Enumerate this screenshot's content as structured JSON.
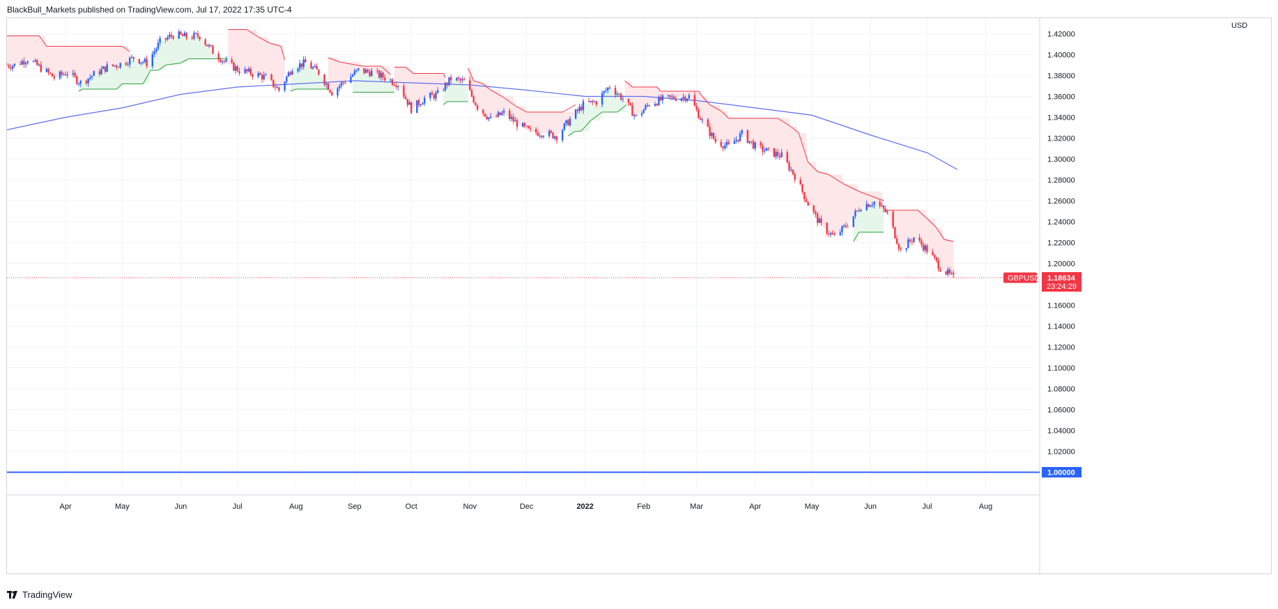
{
  "attribution": "BlackBull_Markets published on TradingView.com, Jul 17, 2022 17:35 UTC-4",
  "footer": {
    "brand": "TradingView"
  },
  "colors": {
    "up": "#2962ff",
    "down": "#f23645",
    "ma": "#5b6cf0",
    "supertrend_down": "#f23645",
    "supertrend_up": "#2e9e3e",
    "fill_down": "#fde3e5",
    "fill_up": "#e3f4e6",
    "level": "#2962ff",
    "grid": "#f0f3fa"
  },
  "chart_data": {
    "type": "candlestick",
    "symbol": "GBPUSD",
    "currency": "USD",
    "last_price": "1.18634",
    "countdown": "23:24:29",
    "level_line": {
      "value": 1.0,
      "label": "1.00000"
    },
    "ylim": [
      0.985,
      1.435
    ],
    "y_ticks": [
      "1.42000",
      "1.40000",
      "1.38000",
      "1.36000",
      "1.34000",
      "1.32000",
      "1.30000",
      "1.28000",
      "1.26000",
      "1.24000",
      "1.22000",
      "1.20000",
      "1.16000",
      "1.14000",
      "1.12000",
      "1.10000",
      "1.08000",
      "1.06000",
      "1.04000",
      "1.02000"
    ],
    "x_ticks": [
      {
        "label": "Apr",
        "date": "2021-04-01"
      },
      {
        "label": "May",
        "date": "2021-05-01"
      },
      {
        "label": "Jun",
        "date": "2021-06-01"
      },
      {
        "label": "Jul",
        "date": "2021-07-01"
      },
      {
        "label": "Aug",
        "date": "2021-08-01"
      },
      {
        "label": "Sep",
        "date": "2021-09-01"
      },
      {
        "label": "Oct",
        "date": "2021-10-01"
      },
      {
        "label": "Nov",
        "date": "2021-11-01"
      },
      {
        "label": "Dec",
        "date": "2021-12-01"
      },
      {
        "label": "2022",
        "date": "2022-01-01",
        "bold": true
      },
      {
        "label": "Feb",
        "date": "2022-02-01"
      },
      {
        "label": "Mar",
        "date": "2022-03-01"
      },
      {
        "label": "Apr",
        "date": "2022-04-01"
      },
      {
        "label": "May",
        "date": "2022-05-01"
      },
      {
        "label": "Jun",
        "date": "2022-06-01"
      },
      {
        "label": "Jul",
        "date": "2022-07-01"
      },
      {
        "label": "Aug",
        "date": "2022-08-01"
      }
    ],
    "price_path": [
      [
        "2021-03-05",
        1.39
      ],
      [
        "2021-03-12",
        1.396
      ],
      [
        "2021-03-19",
        1.387
      ],
      [
        "2021-03-26",
        1.378
      ],
      [
        "2021-04-02",
        1.383
      ],
      [
        "2021-04-09",
        1.373
      ],
      [
        "2021-04-16",
        1.381
      ],
      [
        "2021-04-23",
        1.388
      ],
      [
        "2021-04-30",
        1.391
      ],
      [
        "2021-05-07",
        1.397
      ],
      [
        "2021-05-14",
        1.392
      ],
      [
        "2021-05-21",
        1.412
      ],
      [
        "2021-05-28",
        1.419
      ],
      [
        "2021-06-04",
        1.417
      ],
      [
        "2021-06-11",
        1.418
      ],
      [
        "2021-06-18",
        1.403
      ],
      [
        "2021-06-25",
        1.392
      ],
      [
        "2021-07-02",
        1.385
      ],
      [
        "2021-07-09",
        1.382
      ],
      [
        "2021-07-16",
        1.378
      ],
      [
        "2021-07-23",
        1.366
      ],
      [
        "2021-07-30",
        1.388
      ],
      [
        "2021-08-06",
        1.392
      ],
      [
        "2021-08-13",
        1.383
      ],
      [
        "2021-08-20",
        1.364
      ],
      [
        "2021-08-27",
        1.375
      ],
      [
        "2021-09-03",
        1.385
      ],
      [
        "2021-09-10",
        1.383
      ],
      [
        "2021-09-17",
        1.378
      ],
      [
        "2021-09-24",
        1.372
      ],
      [
        "2021-10-01",
        1.348
      ],
      [
        "2021-10-08",
        1.358
      ],
      [
        "2021-10-15",
        1.362
      ],
      [
        "2021-10-22",
        1.377
      ],
      [
        "2021-10-29",
        1.374
      ],
      [
        "2021-11-05",
        1.35
      ],
      [
        "2021-11-12",
        1.338
      ],
      [
        "2021-11-19",
        1.344
      ],
      [
        "2021-11-26",
        1.334
      ],
      [
        "2021-12-03",
        1.326
      ],
      [
        "2021-12-10",
        1.325
      ],
      [
        "2021-12-17",
        1.322
      ],
      [
        "2021-12-24",
        1.338
      ],
      [
        "2021-12-31",
        1.352
      ],
      [
        "2022-01-07",
        1.355
      ],
      [
        "2022-01-14",
        1.37
      ],
      [
        "2022-01-21",
        1.358
      ],
      [
        "2022-01-28",
        1.34
      ],
      [
        "2022-02-04",
        1.353
      ],
      [
        "2022-02-11",
        1.357
      ],
      [
        "2022-02-18",
        1.359
      ],
      [
        "2022-02-25",
        1.36
      ],
      [
        "2022-03-04",
        1.336
      ],
      [
        "2022-03-11",
        1.317
      ],
      [
        "2022-03-18",
        1.312
      ],
      [
        "2022-03-25",
        1.324
      ],
      [
        "2022-04-01",
        1.312
      ],
      [
        "2022-04-08",
        1.307
      ],
      [
        "2022-04-15",
        1.303
      ],
      [
        "2022-04-22",
        1.284
      ],
      [
        "2022-04-29",
        1.257
      ],
      [
        "2022-05-06",
        1.236
      ],
      [
        "2022-05-13",
        1.225
      ],
      [
        "2022-05-20",
        1.238
      ],
      [
        "2022-05-27",
        1.255
      ],
      [
        "2022-06-03",
        1.259
      ],
      [
        "2022-06-10",
        1.248
      ],
      [
        "2022-06-17",
        1.212
      ],
      [
        "2022-06-24",
        1.225
      ],
      [
        "2022-07-01",
        1.213
      ],
      [
        "2022-07-08",
        1.196
      ],
      [
        "2022-07-15",
        1.186
      ]
    ],
    "supertrend": [
      {
        "trend": "down",
        "points": [
          [
            "2021-03-01",
            1.418
          ],
          [
            "2021-03-18",
            1.418
          ],
          [
            "2021-03-22",
            1.408
          ],
          [
            "2021-05-01",
            1.408
          ],
          [
            "2021-05-05",
            1.403
          ]
        ]
      },
      {
        "trend": "up",
        "points": [
          [
            "2021-04-08",
            1.365
          ],
          [
            "2021-04-10",
            1.367
          ],
          [
            "2021-04-28",
            1.367
          ],
          [
            "2021-05-01",
            1.372
          ],
          [
            "2021-05-12",
            1.372
          ],
          [
            "2021-05-16",
            1.385
          ],
          [
            "2021-05-20",
            1.385
          ],
          [
            "2021-05-24",
            1.39
          ],
          [
            "2021-06-01",
            1.392
          ],
          [
            "2021-06-05",
            1.396
          ],
          [
            "2021-06-26",
            1.396
          ]
        ]
      },
      {
        "trend": "down",
        "points": [
          [
            "2021-06-26",
            1.424
          ],
          [
            "2021-07-06",
            1.424
          ],
          [
            "2021-07-12",
            1.417
          ],
          [
            "2021-07-18",
            1.411
          ],
          [
            "2021-07-24",
            1.408
          ],
          [
            "2021-07-26",
            1.395
          ]
        ]
      },
      {
        "trend": "up",
        "points": [
          [
            "2021-07-29",
            1.365
          ],
          [
            "2021-08-01",
            1.367
          ],
          [
            "2021-08-18",
            1.367
          ]
        ]
      },
      {
        "trend": "down",
        "points": [
          [
            "2021-08-18",
            1.397
          ],
          [
            "2021-08-24",
            1.393
          ],
          [
            "2021-09-05",
            1.389
          ],
          [
            "2021-09-15",
            1.389
          ],
          [
            "2021-09-20",
            1.381
          ]
        ]
      },
      {
        "trend": "up",
        "points": [
          [
            "2021-08-31",
            1.364
          ],
          [
            "2021-09-22",
            1.364
          ]
        ]
      },
      {
        "trend": "down",
        "points": [
          [
            "2021-09-22",
            1.388
          ],
          [
            "2021-09-28",
            1.388
          ],
          [
            "2021-10-02",
            1.382
          ],
          [
            "2021-10-18",
            1.382
          ],
          [
            "2021-10-19",
            1.378
          ]
        ]
      },
      {
        "trend": "up",
        "points": [
          [
            "2021-10-18",
            1.352
          ],
          [
            "2021-10-20",
            1.355
          ],
          [
            "2021-10-31",
            1.355
          ]
        ]
      },
      {
        "trend": "down",
        "points": [
          [
            "2021-10-31",
            1.387
          ],
          [
            "2021-11-03",
            1.375
          ],
          [
            "2021-11-08",
            1.372
          ],
          [
            "2021-11-12",
            1.366
          ],
          [
            "2021-11-18",
            1.36
          ],
          [
            "2021-11-25",
            1.351
          ],
          [
            "2021-12-01",
            1.345
          ],
          [
            "2021-12-20",
            1.345
          ],
          [
            "2021-12-27",
            1.352
          ]
        ]
      },
      {
        "trend": "up",
        "points": [
          [
            "2021-12-23",
            1.322
          ],
          [
            "2021-12-26",
            1.326
          ],
          [
            "2021-12-30",
            1.327
          ],
          [
            "2022-01-04",
            1.337
          ],
          [
            "2022-01-10",
            1.345
          ],
          [
            "2022-01-18",
            1.345
          ],
          [
            "2022-01-23",
            1.352
          ]
        ]
      },
      {
        "trend": "down",
        "points": [
          [
            "2022-01-22",
            1.375
          ],
          [
            "2022-01-26",
            1.369
          ],
          [
            "2022-02-08",
            1.369
          ],
          [
            "2022-02-10",
            1.365
          ],
          [
            "2022-03-02",
            1.365
          ],
          [
            "2022-03-04",
            1.36
          ],
          [
            "2022-03-08",
            1.352
          ],
          [
            "2022-03-14",
            1.346
          ],
          [
            "2022-03-18",
            1.339
          ],
          [
            "2022-04-13",
            1.339
          ],
          [
            "2022-04-20",
            1.331
          ],
          [
            "2022-04-24",
            1.325
          ],
          [
            "2022-04-29",
            1.297
          ],
          [
            "2022-05-04",
            1.288
          ],
          [
            "2022-05-10",
            1.285
          ],
          [
            "2022-05-18",
            1.276
          ],
          [
            "2022-05-26",
            1.269
          ],
          [
            "2022-06-08",
            1.26
          ]
        ]
      },
      {
        "trend": "up",
        "points": [
          [
            "2022-05-23",
            1.221
          ],
          [
            "2022-05-26",
            1.23
          ],
          [
            "2022-06-08",
            1.23
          ]
        ]
      },
      {
        "trend": "down",
        "points": [
          [
            "2022-06-08",
            1.251
          ],
          [
            "2022-06-26",
            1.251
          ],
          [
            "2022-07-01",
            1.243
          ],
          [
            "2022-07-06",
            1.234
          ],
          [
            "2022-07-10",
            1.223
          ],
          [
            "2022-07-15",
            1.221
          ]
        ]
      }
    ],
    "moving_average": [
      [
        "2021-03-01",
        1.328
      ],
      [
        "2021-04-01",
        1.34
      ],
      [
        "2021-05-01",
        1.349
      ],
      [
        "2021-06-01",
        1.362
      ],
      [
        "2021-07-01",
        1.369
      ],
      [
        "2021-08-01",
        1.372
      ],
      [
        "2021-09-01",
        1.375
      ],
      [
        "2021-10-01",
        1.373
      ],
      [
        "2021-11-01",
        1.371
      ],
      [
        "2021-12-01",
        1.366
      ],
      [
        "2022-01-01",
        1.36
      ],
      [
        "2022-02-01",
        1.36
      ],
      [
        "2022-03-01",
        1.356
      ],
      [
        "2022-04-01",
        1.349
      ],
      [
        "2022-05-01",
        1.342
      ],
      [
        "2022-06-01",
        1.323
      ],
      [
        "2022-07-01",
        1.306
      ],
      [
        "2022-07-17",
        1.29
      ]
    ]
  }
}
